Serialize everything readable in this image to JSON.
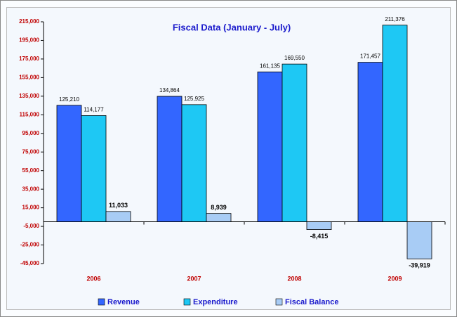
{
  "chart_data": {
    "type": "bar",
    "title": "Fiscal Data (January - July)",
    "categories": [
      "2006",
      "2007",
      "2008",
      "2009"
    ],
    "series": [
      {
        "name": "Revenue",
        "color": "#3366ff",
        "values": [
          125210,
          134864,
          161135,
          171457
        ],
        "value_labels": [
          "125,210",
          "134,864",
          "161,135",
          "171,457"
        ]
      },
      {
        "name": "Expenditure",
        "color": "#1ec8f4",
        "values": [
          114177,
          125925,
          169550,
          211376
        ],
        "value_labels": [
          "114,177",
          "125,925",
          "169,550",
          "211,376"
        ]
      },
      {
        "name": "Fiscal Balance",
        "color": "#a8ccf5",
        "values": [
          11033,
          8939,
          -8415,
          -39919
        ],
        "value_labels": [
          "11,033",
          "8,939",
          "-8,415",
          "-39,919"
        ]
      }
    ],
    "ylim": [
      -45000,
      215000
    ],
    "yticks": [
      {
        "value": -45000,
        "label": "-45,000"
      },
      {
        "value": -25000,
        "label": "-25,000"
      },
      {
        "value": -5000,
        "label": "-5,000"
      },
      {
        "value": 15000,
        "label": "15,000"
      },
      {
        "value": 35000,
        "label": "35,000"
      },
      {
        "value": 55000,
        "label": "55,000"
      },
      {
        "value": 75000,
        "label": "75,000"
      },
      {
        "value": 95000,
        "label": "95,000"
      },
      {
        "value": 115000,
        "label": "115,000"
      },
      {
        "value": 135000,
        "label": "135,000"
      },
      {
        "value": 155000,
        "label": "155,000"
      },
      {
        "value": 175000,
        "label": "175,000"
      },
      {
        "value": 195000,
        "label": "195,000"
      },
      {
        "value": 215000,
        "label": "215,000"
      }
    ],
    "grid": false
  }
}
